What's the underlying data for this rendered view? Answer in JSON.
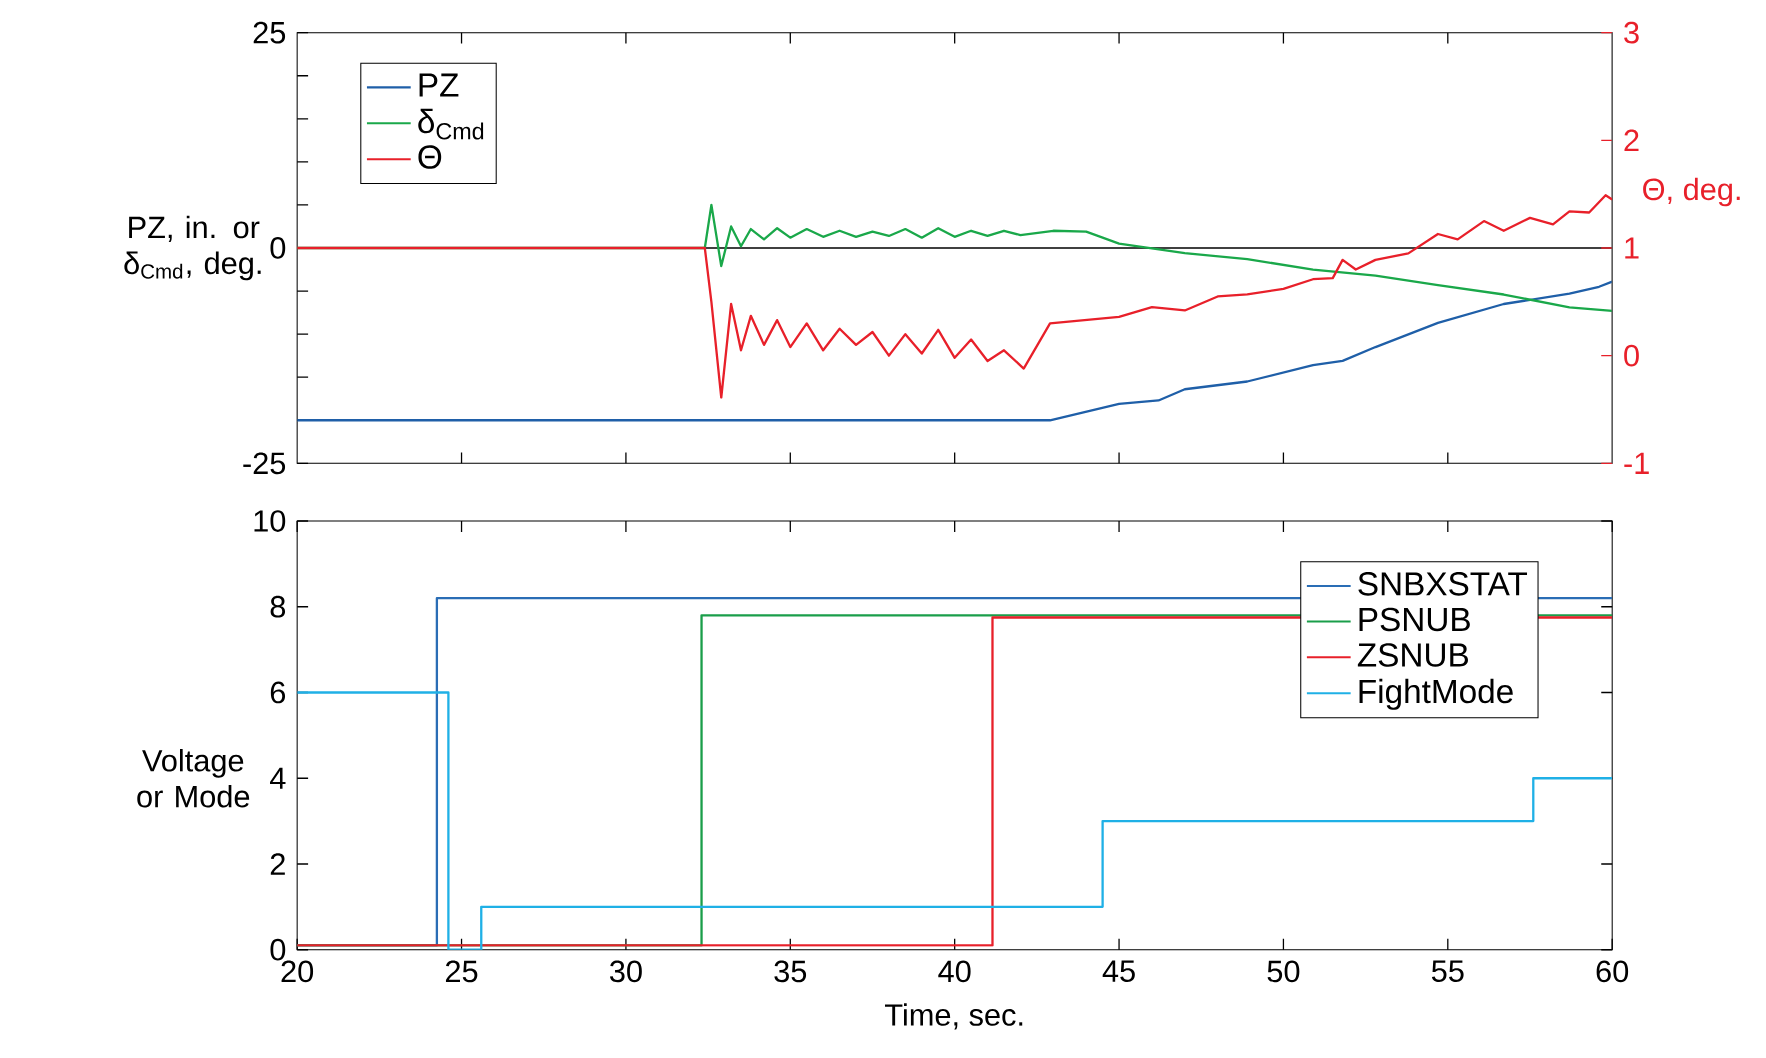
{
  "chart_data": [
    {
      "type": "line",
      "ylabel": "PZ, in. or δ$_{Cmd}$, deg.",
      "y2label": "Θ, deg.",
      "legend": "top left",
      "line_style": "solid",
      "tick_labels": "y",
      "xlim": [
        20,
        60
      ],
      "xticks": [
        {
          "value": 25,
          "label": null
        },
        {
          "value": 30,
          "label": null
        },
        {
          "value": 35,
          "label": null
        },
        {
          "value": 40,
          "label": null
        },
        {
          "value": 45,
          "label": null
        },
        {
          "value": 50,
          "label": null
        },
        {
          "value": 55,
          "label": null
        }
      ],
      "ylim": [
        -25,
        25
      ],
      "yticks": [
        -25,
        {
          "value": -20,
          "label": null
        },
        {
          "value": -15,
          "label": null
        },
        {
          "value": -10,
          "label": null
        },
        {
          "value": -5,
          "label": null
        },
        0,
        {
          "value": 5,
          "label": null
        },
        {
          "value": 10,
          "label": null
        },
        {
          "value": 15,
          "label": null
        },
        {
          "value": 20,
          "label": null
        },
        25
      ],
      "y2lim": [
        -1,
        3
      ],
      "y2ticks": [
        -1,
        0,
        1,
        2,
        3
      ],
      "ref_lines": [
        {
          "axis": "y",
          "value": 0,
          "color": "#000000"
        }
      ],
      "series": [
        {
          "name": "PZ",
          "color": "#1f5fa8",
          "x": [
            20,
            42.9,
            45,
            46.2,
            47,
            48.9,
            50.9,
            51.8,
            52.8,
            54.7,
            56.7,
            58.7,
            59.6,
            60
          ],
          "values": [
            -20,
            -20,
            -18.1,
            -17.7,
            -16.4,
            -15.5,
            -13.6,
            -13.1,
            -11.5,
            -8.7,
            -6.5,
            -5.3,
            -4.5,
            -3.9
          ]
        },
        {
          "name": "δ$_{Cmd}$",
          "color": "#1aa84a",
          "x": [
            20,
            32.4,
            32.6,
            32.9,
            33.2,
            33.5,
            33.8,
            34.2,
            34.6,
            35,
            35.5,
            36,
            36.5,
            37,
            37.5,
            38,
            38.5,
            39,
            39.5,
            40,
            40.5,
            41,
            41.5,
            42,
            43,
            44,
            45,
            47,
            48.9,
            50.9,
            52.8,
            54.7,
            56.7,
            58.7,
            60
          ],
          "values": [
            0,
            0,
            5,
            -2.1,
            2.5,
            0.2,
            2.2,
            1,
            2.3,
            1.2,
            2.2,
            1.3,
            2,
            1.3,
            1.9,
            1.4,
            2.2,
            1.2,
            2.3,
            1.3,
            2,
            1.4,
            2,
            1.5,
            2,
            1.9,
            0.5,
            -0.6,
            -1.3,
            -2.5,
            -3.2,
            -4.3,
            -5.4,
            -6.9,
            -7.3
          ]
        },
        {
          "name": "Θ",
          "color": "#e8202a",
          "axis": "y2",
          "x": [
            20,
            32.4,
            32.6,
            32.9,
            33.2,
            33.5,
            33.8,
            34.2,
            34.6,
            35,
            35.5,
            36,
            36.5,
            37,
            37.5,
            38,
            38.5,
            39,
            39.5,
            40,
            40.5,
            41,
            41.5,
            42.1,
            42.9,
            45,
            46,
            47,
            48,
            48.9,
            50,
            50.9,
            51.5,
            51.8,
            52.2,
            52.8,
            53.8,
            54.7,
            55.3,
            56.1,
            56.7,
            57.5,
            58.2,
            58.7,
            59.3,
            59.8,
            60
          ],
          "values": [
            1,
            1,
            0.5,
            -0.39,
            0.48,
            0.05,
            0.37,
            0.1,
            0.33,
            0.08,
            0.3,
            0.05,
            0.25,
            0.1,
            0.22,
            0,
            0.2,
            0.02,
            0.24,
            -0.02,
            0.15,
            -0.05,
            0.05,
            -0.12,
            0.3,
            0.36,
            0.45,
            0.42,
            0.55,
            0.57,
            0.62,
            0.71,
            0.72,
            0.89,
            0.8,
            0.89,
            0.95,
            1.13,
            1.08,
            1.25,
            1.16,
            1.28,
            1.22,
            1.34,
            1.33,
            1.49,
            1.45
          ]
        }
      ]
    },
    {
      "type": "step",
      "xlabel": "Time, sec.",
      "ylabel": "Voltage or Mode",
      "legend": "top right",
      "line_style": "solid",
      "xlim": [
        20,
        60
      ],
      "xticks": [
        20,
        25,
        30,
        35,
        40,
        45,
        50,
        55,
        60
      ],
      "ylim": [
        0,
        10
      ],
      "yticks": [
        0,
        2,
        4,
        6,
        8,
        10
      ],
      "series": [
        {
          "name": "SNBXSTAT",
          "color": "#2a6db5",
          "x": [
            20,
            24.25,
            60
          ],
          "values": [
            0.1,
            8.2,
            8.2
          ]
        },
        {
          "name": "PSNUB",
          "color": "#1a9e4a",
          "x": [
            20,
            32.3,
            60
          ],
          "values": [
            0.1,
            7.8,
            7.8
          ]
        },
        {
          "name": "ZSNUB",
          "color": "#e8202a",
          "x": [
            20,
            41.15,
            60
          ],
          "values": [
            0.1,
            7.75,
            7.75
          ]
        },
        {
          "name": "FightMode",
          "color": "#1fb0e6",
          "x": [
            20,
            24.6,
            25.6,
            44.5,
            57.6,
            60
          ],
          "values": [
            6,
            0,
            1,
            3,
            4,
            4
          ]
        }
      ]
    }
  ]
}
